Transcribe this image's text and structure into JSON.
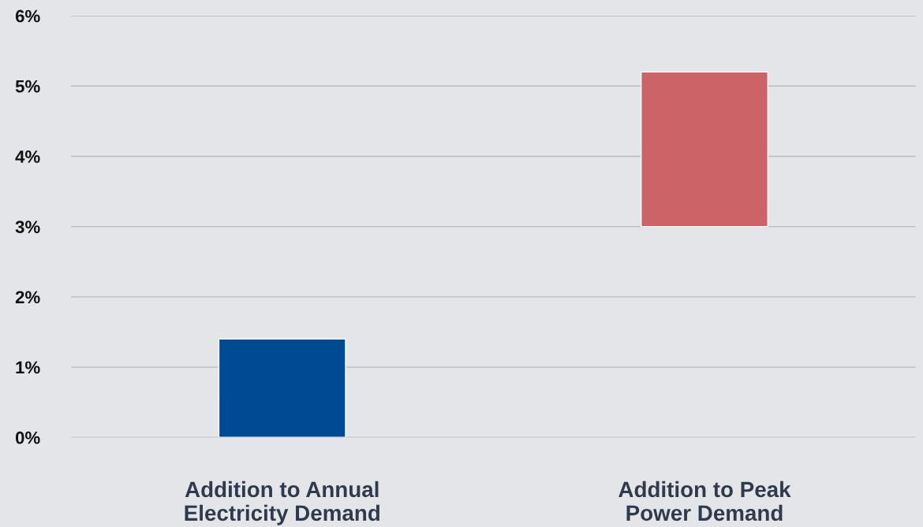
{
  "chart_data": {
    "type": "bar",
    "categories": [
      "Addition to Annual Electricity Demand",
      "Addition to Peak Power Demand"
    ],
    "values": [
      1.4,
      2.2
    ],
    "base": [
      0,
      3.0
    ],
    "colors": [
      "#004a94",
      "#cc6366"
    ],
    "ylim": [
      0,
      6
    ],
    "yticks": [
      {
        "value": 0,
        "label": "0%"
      },
      {
        "value": 1,
        "label": "1%"
      },
      {
        "value": 2,
        "label": "2%"
      },
      {
        "value": 3,
        "label": "3%"
      },
      {
        "value": 4,
        "label": "4%"
      },
      {
        "value": 5,
        "label": "5%"
      },
      {
        "value": 6,
        "label": "6%"
      }
    ],
    "grid": "y",
    "legend": false
  }
}
